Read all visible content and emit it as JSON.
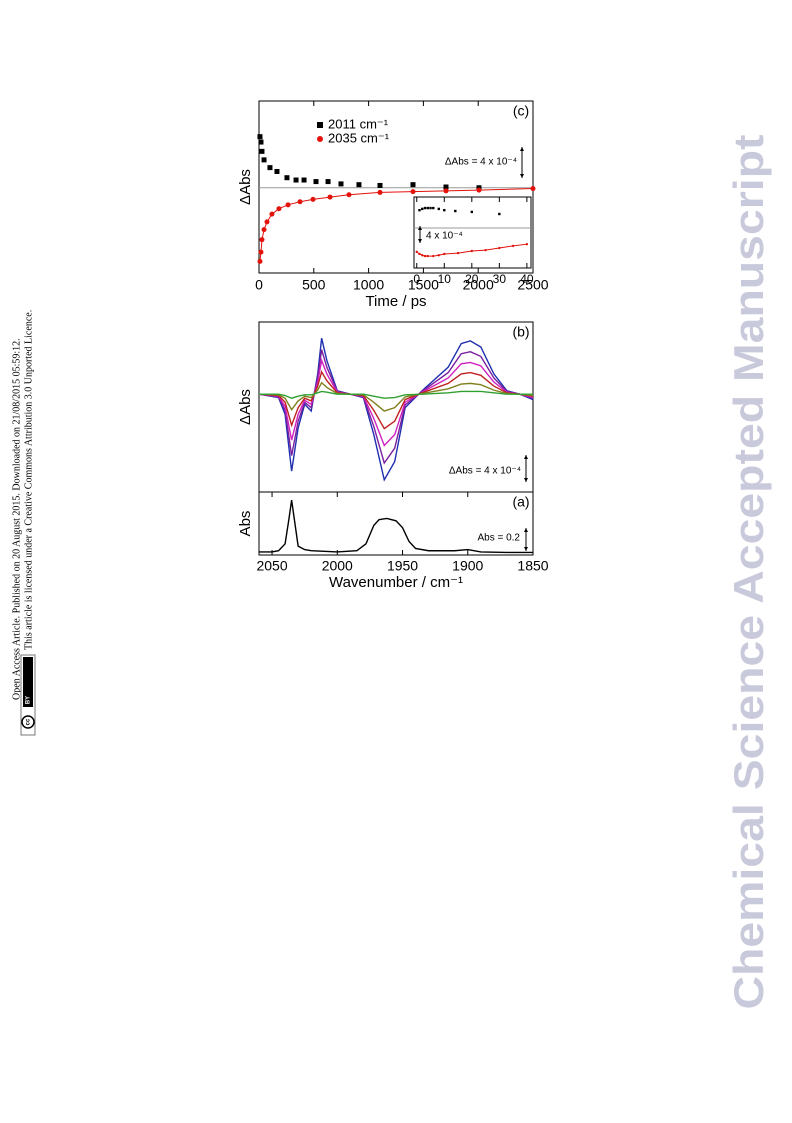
{
  "watermark": "Chemical Science Accepted Manuscript",
  "license": {
    "line1": "Open Access Article. Published on 20 August 2015. Downloaded on 21/08/2015 05:59:12.",
    "line2": "This article is licensed under a Creative Commons Attribution 3.0 Unported Licence.",
    "badge_icon": "cc",
    "badge_text": "BY"
  },
  "chart_data": [
    {
      "type": "scatter",
      "panel_label": "(c)",
      "xlabel": "Time / ps",
      "ylabel": "ΔAbs",
      "xlim": [
        0,
        2500
      ],
      "xticks": [
        0,
        500,
        1000,
        1500,
        2000,
        2500
      ],
      "ylim": [
        -0.0011,
        0.00112
      ],
      "zero_line": true,
      "series": [
        {
          "name": "2011 cm⁻¹",
          "color": "#000000",
          "marker": "square",
          "x": [
            9,
            18,
            27,
            46,
            100,
            164,
            255,
            338,
            411,
            520,
            630,
            748,
            912,
            1104,
            1405,
            1706,
            2007
          ],
          "values": [
            0.00066,
            0.00059,
            0.00047,
            0.00036,
            0.00026,
            0.00021,
            0.00013,
            0.0001,
            0.0001,
            8e-05,
            8e-05,
            5e-05,
            4e-05,
            3e-05,
            4e-05,
            1e-05,
            0
          ]
        },
        {
          "name": "2035 cm⁻¹",
          "color": "#e3120b",
          "marker": "circle",
          "line": true,
          "x": [
            9,
            18,
            27,
            46,
            73,
            118,
            182,
            265,
            374,
            493,
            648,
            821,
            1104,
            1405,
            1706,
            2007,
            2500
          ],
          "values": [
            -0.00095,
            -0.00083,
            -0.00067,
            -0.00054,
            -0.00044,
            -0.00034,
            -0.00027,
            -0.00022,
            -0.00018,
            -0.00015,
            -0.00012,
            -9e-05,
            -6e-05,
            -5e-05,
            -4e-05,
            -3e-05,
            -1e-05
          ]
        }
      ],
      "scale_bar": {
        "label": "ΔAbs = 4 x 10⁻⁴",
        "value": 0.0004
      }
    },
    {
      "type": "scatter",
      "xlim": [
        -1,
        41.5
      ],
      "xticks": [
        0,
        10,
        20,
        30,
        40
      ],
      "ylim": [
        -0.00094,
        0.00073
      ],
      "zero_line": true,
      "series": [
        {
          "color": "#000000",
          "marker": "square",
          "x": [
            1,
            2,
            3,
            4,
            5,
            6,
            8,
            10,
            14,
            20,
            30
          ],
          "values": [
            0.00042,
            0.00045,
            0.00047,
            0.00047,
            0.00047,
            0.00047,
            0.00045,
            0.00042,
            0.0004,
            0.00038,
            0.00033
          ]
        },
        {
          "color": "#e3120b",
          "marker": "circle",
          "line": true,
          "x": [
            0,
            1,
            2,
            3,
            4,
            6,
            8,
            10,
            15,
            20,
            25,
            30,
            35,
            40
          ],
          "values": [
            -0.00056,
            -0.00061,
            -0.00064,
            -0.00066,
            -0.00066,
            -0.00066,
            -0.00064,
            -0.00061,
            -0.00059,
            -0.00054,
            -0.00052,
            -0.00047,
            -0.00042,
            -0.00038
          ]
        }
      ],
      "scale_bar": {
        "label": "4 x 10⁻⁴",
        "value": 0.0004
      }
    },
    {
      "type": "line",
      "panel_label": "(b)",
      "ylabel": "ΔAbs",
      "xlim": [
        2060,
        1850
      ],
      "ylim": [
        -0.00145,
        0.00107
      ],
      "x": [
        2060,
        2045,
        2040,
        2035,
        2030,
        2025,
        2020,
        2015,
        2012,
        2008,
        2000,
        1990,
        1980,
        1972,
        1964,
        1956,
        1948,
        1935,
        1915,
        1905,
        1898,
        1890,
        1880,
        1870,
        1860,
        1850
      ],
      "series": [
        {
          "color": "#1f2fb0",
          "values": [
            0,
            -5e-05,
            -0.0003,
            -0.00114,
            -0.0005,
            -0.00015,
            -0.00025,
            0.0003,
            0.00083,
            0.0005,
            5e-05,
            0,
            -5e-05,
            -0.0006,
            -0.00127,
            -0.001,
            -0.0002,
            5e-05,
            0.0004,
            0.00075,
            0.00079,
            0.0007,
            0.0003,
            5e-05,
            0,
            -8e-05
          ]
        },
        {
          "color": "#7a1fa0",
          "values": [
            0,
            -4e-05,
            -0.00024,
            -0.00091,
            -0.0004,
            -0.00012,
            -0.0002,
            0.00024,
            0.00066,
            0.0004,
            4e-05,
            0,
            -4e-05,
            -0.00048,
            -0.00102,
            -0.0008,
            -0.00016,
            4e-05,
            0.00032,
            0.0006,
            0.00063,
            0.00056,
            0.00024,
            4e-05,
            0,
            -6e-05
          ]
        },
        {
          "color": "#d020c0",
          "values": [
            0,
            -3e-05,
            -0.00018,
            -0.00068,
            -0.0003,
            -9e-05,
            -0.00015,
            0.00018,
            0.0005,
            0.0003,
            3e-05,
            0,
            -3e-05,
            -0.00036,
            -0.00076,
            -0.0006,
            -0.00012,
            3e-05,
            0.00024,
            0.00045,
            0.00047,
            0.00042,
            0.00018,
            3e-05,
            0,
            -5e-05
          ]
        },
        {
          "color": "#c02020",
          "values": [
            0,
            -2e-05,
            -0.00012,
            -0.00046,
            -0.0002,
            -6e-05,
            -0.0001,
            0.00012,
            0.00033,
            0.0002,
            2e-05,
            0,
            -2e-05,
            -0.00024,
            -0.00051,
            -0.0004,
            -8e-05,
            2e-05,
            0.00016,
            0.0003,
            0.00032,
            0.00028,
            0.00012,
            2e-05,
            0,
            -3e-05
          ]
        },
        {
          "color": "#808020",
          "values": [
            0,
            -1e-05,
            -6e-05,
            -0.00023,
            -0.0001,
            -3e-05,
            -5e-05,
            6e-05,
            0.00017,
            0.0001,
            1e-05,
            0,
            -1e-05,
            -0.00012,
            -0.00025,
            -0.0002,
            -4e-05,
            1e-05,
            8e-05,
            0.00015,
            0.00016,
            0.00014,
            6e-05,
            1e-05,
            0,
            -2e-05
          ]
        },
        {
          "color": "#30a030",
          "values": [
            0,
            0,
            -2e-05,
            -6e-05,
            -3e-05,
            -1e-05,
            -1e-05,
            2e-05,
            4e-05,
            3e-05,
            0,
            0,
            0,
            -3e-05,
            -6e-05,
            -5e-05,
            -1e-05,
            0,
            2e-05,
            4e-05,
            4e-05,
            4e-05,
            2e-05,
            0,
            0,
            0
          ]
        }
      ],
      "scale_bar": {
        "label": "ΔAbs = 4 x 10⁻⁴",
        "value": 0.0004
      }
    },
    {
      "type": "line",
      "panel_label": "(a)",
      "xlabel": "Wavenumber / cm⁻¹",
      "ylabel": "Abs",
      "xlim": [
        2060,
        1850
      ],
      "xticks": [
        2050,
        2000,
        1950,
        1900,
        1850
      ],
      "ylim": [
        -0.017,
        0.53
      ],
      "x": [
        2060,
        2050,
        2045,
        2040,
        2037,
        2035,
        2033,
        2030,
        2025,
        2020,
        2000,
        1985,
        1978,
        1972,
        1968,
        1962,
        1955,
        1950,
        1945,
        1940,
        1930,
        1910,
        1900,
        1890,
        1870,
        1850
      ],
      "series": [
        {
          "color": "#000000",
          "values": [
            0.01,
            0.01,
            0.02,
            0.08,
            0.3,
            0.46,
            0.3,
            0.06,
            0.03,
            0.02,
            0.01,
            0.02,
            0.08,
            0.24,
            0.29,
            0.3,
            0.28,
            0.22,
            0.1,
            0.04,
            0.02,
            0.02,
            0.03,
            0.01,
            0.005,
            0.005
          ]
        }
      ],
      "scale_bar": {
        "label": "Abs = 0.2",
        "value": 0.2
      }
    }
  ]
}
